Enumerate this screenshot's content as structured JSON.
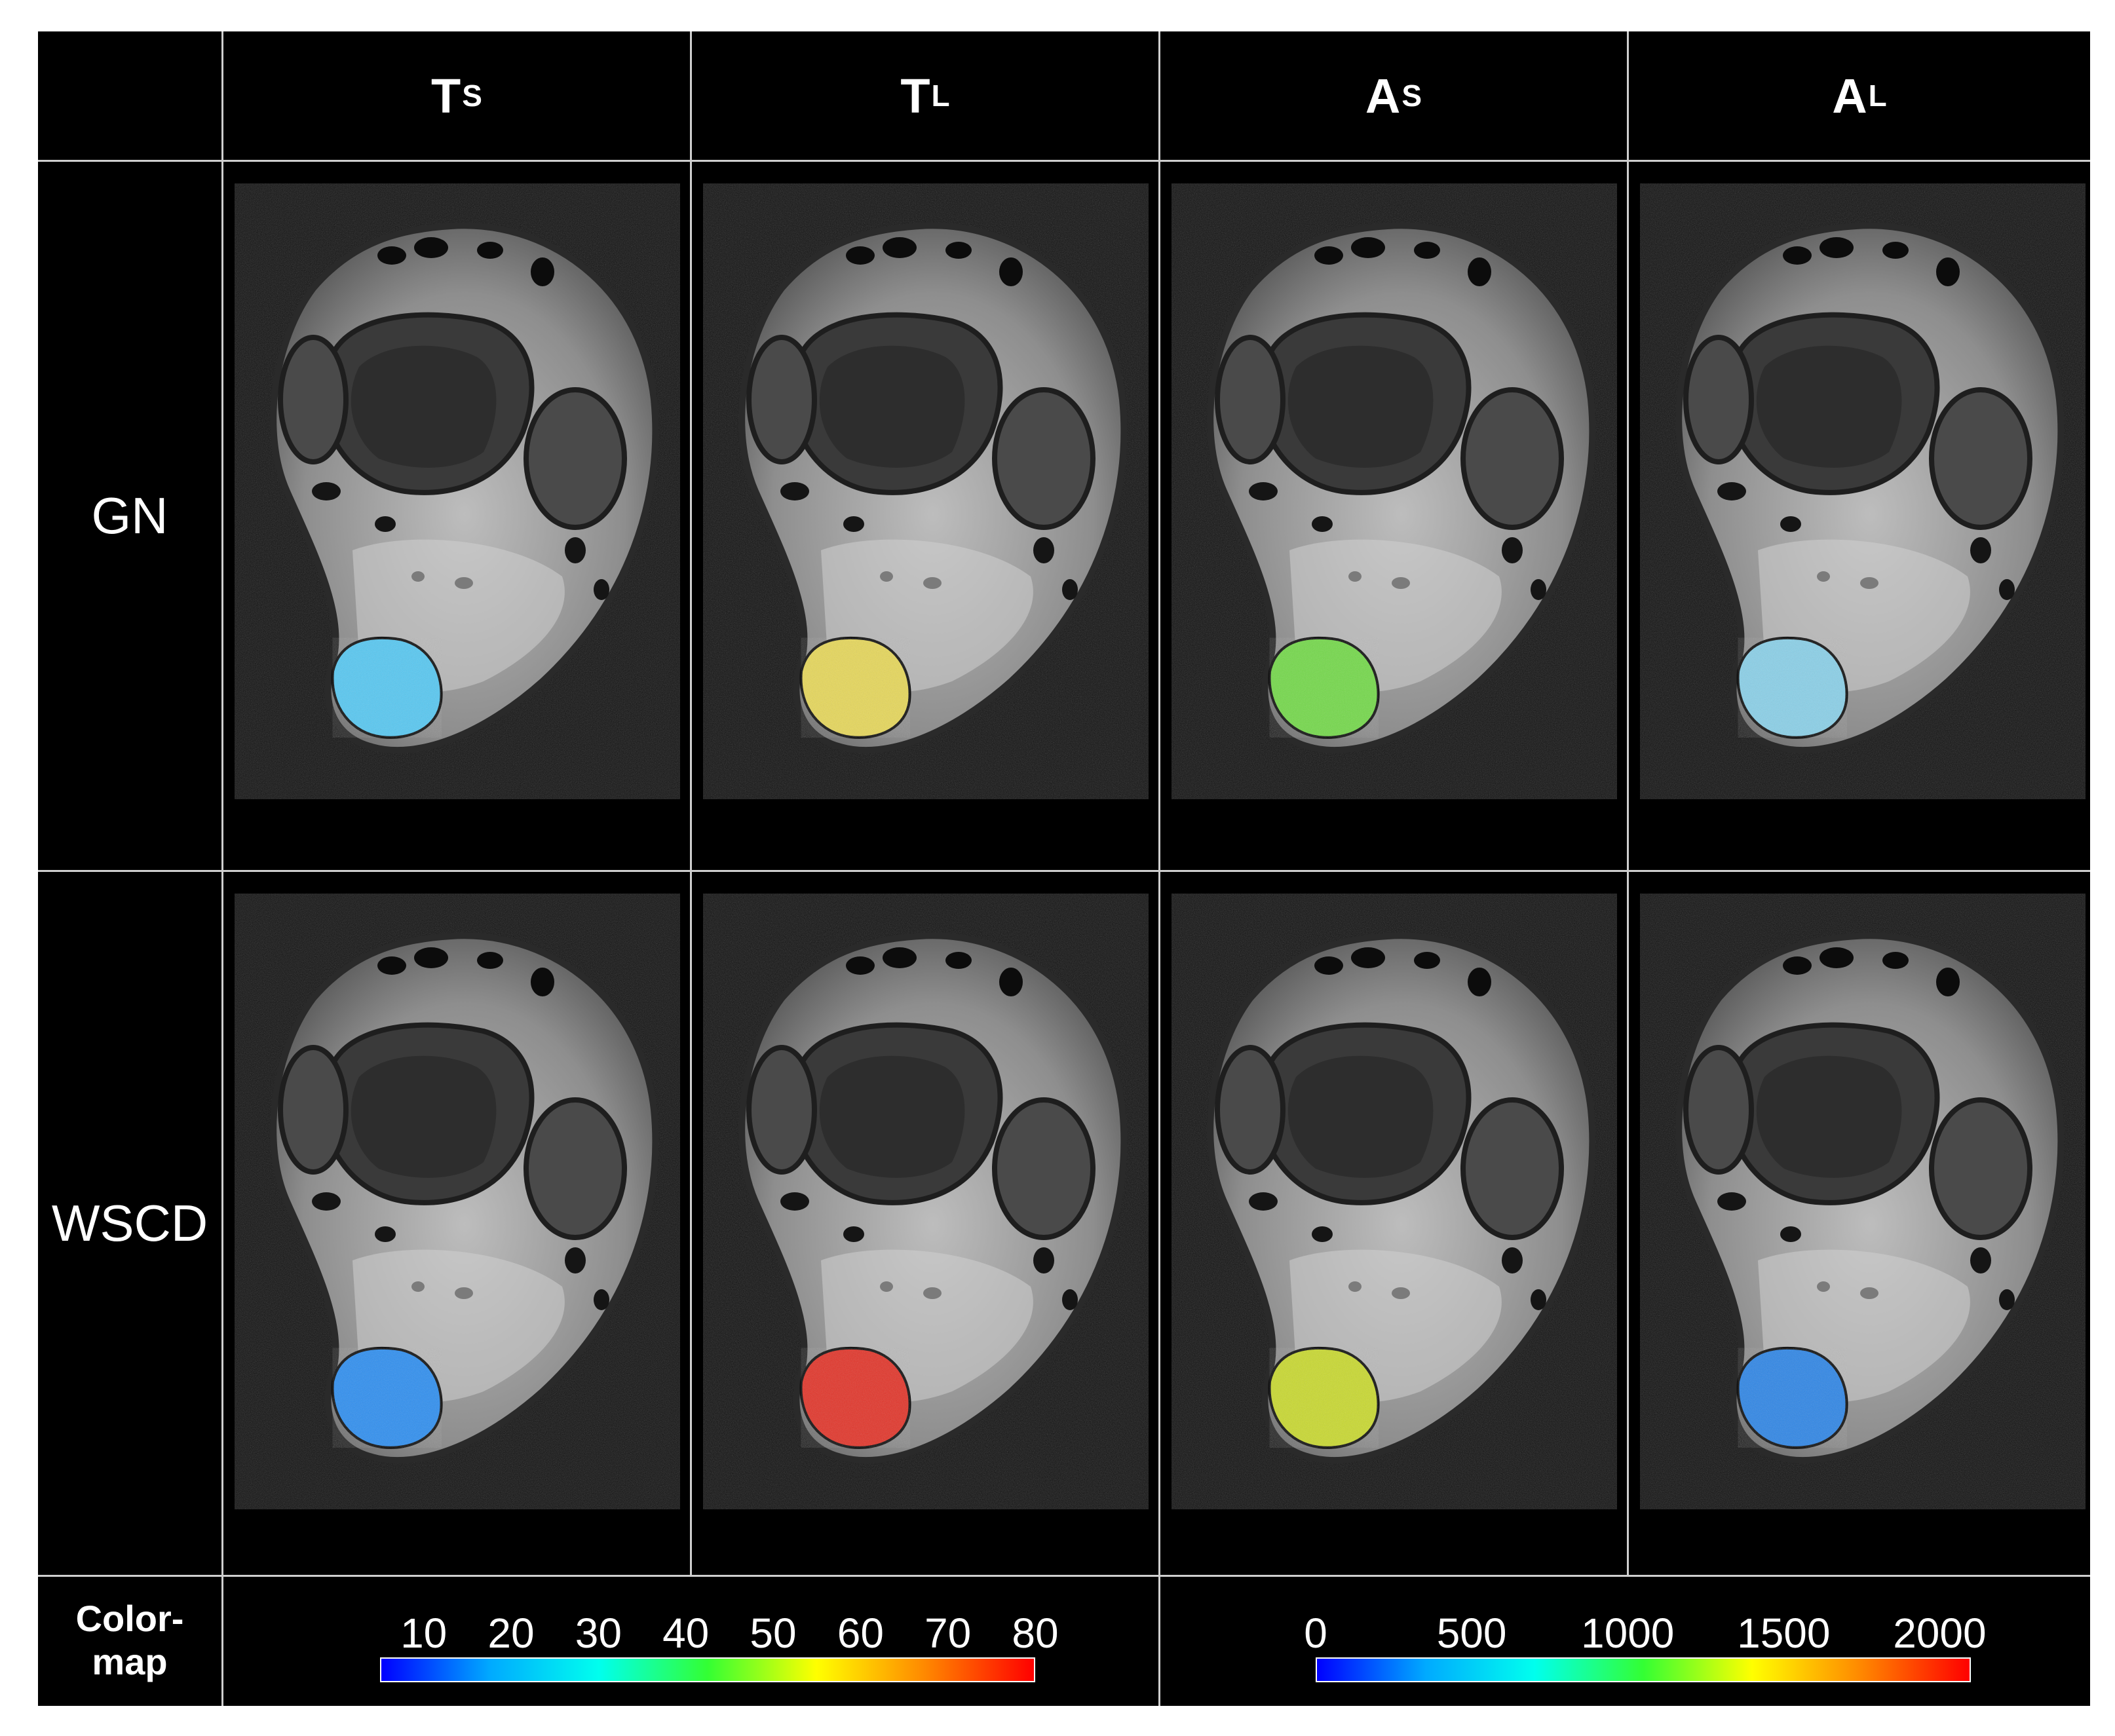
{
  "columns": [
    {
      "main": "T",
      "sub": "S"
    },
    {
      "main": "T",
      "sub": "L"
    },
    {
      "main": "A",
      "sub": "S"
    },
    {
      "main": "A",
      "sub": "L"
    }
  ],
  "rows": [
    "GN",
    "WSCD"
  ],
  "colormap_label": {
    "line1": "Color-",
    "line2": "map"
  },
  "scales": [
    {
      "name": "T",
      "ticks": [
        "10",
        "20",
        "30",
        "40",
        "50",
        "60",
        "70",
        "80"
      ],
      "min": 5,
      "max": 80
    },
    {
      "name": "A",
      "ticks": [
        "0",
        "500",
        "1000",
        "1500",
        "2000"
      ],
      "min": 0,
      "max": 2100
    }
  ],
  "colors": {
    "background": "#000000",
    "grid": "#cfcfcf",
    "jet": [
      "#0000ff",
      "#00aaff",
      "#00ffee",
      "#33ff33",
      "#ffff00",
      "#ff8800",
      "#ff0000"
    ]
  },
  "overlays": [
    [
      "#57c8f2",
      "#e6d75a",
      "#74d94a",
      "#8ad0e8"
    ],
    [
      "#2f8ff0",
      "#e2352a",
      "#c9d930",
      "#2f86e6"
    ]
  ]
}
